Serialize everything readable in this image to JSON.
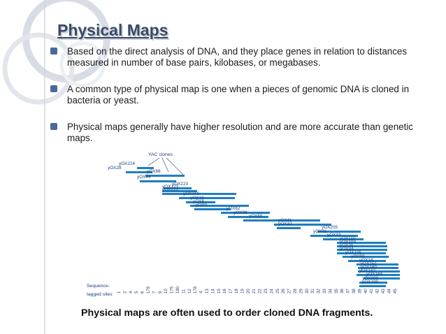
{
  "slide": {
    "title": "Physical Maps",
    "bullets": [
      "Based on the direct analysis of DNA, and they place genes in relation to distances measured in number of base pairs, kilobases, or megabases.",
      "A common type of physical map is one when a pieces of genomic DNA is cloned in bacteria or yeast.",
      "Physical maps generally have higher resolution and are more accurate than genetic maps."
    ],
    "caption": "Physical maps are often used to order cloned DNA fragments."
  },
  "figure": {
    "header": "YAC clones",
    "row_label_line1": "Sequence-",
    "row_label_line2": "tagged sites",
    "clones": [
      "yOX224",
      "yOX28",
      "yOX88",
      "yOX44",
      "yOX223",
      "yOX123",
      "yOX221",
      "yOX216",
      "yOX10",
      "yOX6",
      "yOX9",
      "yOX62",
      "yOX38",
      "yOX55",
      "yOX41",
      "yOX32",
      "yOX205",
      "yOX31",
      "yOX33",
      "yOX110",
      "yOX193",
      "yOX35",
      "yOX34",
      "yOX135",
      "yOX90",
      "yOX14",
      "yOX151",
      "yOX160",
      "yOX142",
      "yOX184",
      "yOX200",
      "yOX199"
    ],
    "sites": [
      "1",
      "2",
      "4",
      "5",
      "6",
      "179",
      "7",
      "9",
      "10",
      "175",
      "180",
      "11",
      "12",
      "178",
      "4",
      "13",
      "14",
      "15",
      "16",
      "17",
      "18",
      "19",
      "20",
      "21",
      "22",
      "23",
      "24",
      "25",
      "26",
      "27",
      "28",
      "29",
      "30",
      "31",
      "32",
      "33",
      "34",
      "35",
      "36",
      "37",
      "38",
      "39",
      "40",
      "41",
      "42",
      "43",
      "44",
      "45"
    ]
  },
  "colors": {
    "title": "#3a4a66",
    "bar": "#1f7ec0",
    "bullet": "#4a6a9a",
    "deco": "#cfd5dd"
  }
}
